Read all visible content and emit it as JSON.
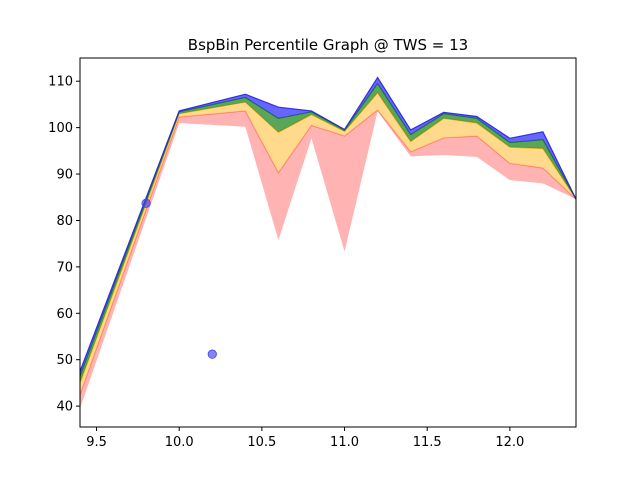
{
  "chart_data": {
    "type": "area",
    "title": "BspBin Percentile Graph @ TWS = 13",
    "xlabel": "",
    "ylabel": "",
    "xlim": [
      9.4,
      12.4
    ],
    "ylim": [
      35.5,
      115
    ],
    "xticks": [
      9.5,
      10.0,
      10.5,
      11.0,
      11.5,
      12.0
    ],
    "xtick_labels": [
      "9.5",
      "10.0",
      "10.5",
      "11.0",
      "11.5",
      "12.0"
    ],
    "yticks": [
      40,
      50,
      60,
      70,
      80,
      90,
      100,
      110
    ],
    "ytick_labels": [
      "40",
      "50",
      "60",
      "70",
      "80",
      "90",
      "100",
      "110"
    ],
    "grid": false,
    "x": [
      9.4,
      10.0,
      10.4,
      10.6,
      10.8,
      11.0,
      11.2,
      11.4,
      11.6,
      11.8,
      12.0,
      12.2,
      12.4
    ],
    "bands": [
      {
        "color": "#ff9999",
        "edge": "#ff6666",
        "lower": [
          39.5,
          101,
          100.2,
          75.8,
          97.7,
          73.3,
          103.5,
          93.8,
          94.1,
          93.7,
          88.7,
          88.0,
          84.6
        ],
        "upper": [
          42.5,
          102.3,
          103.6,
          90.3,
          100.5,
          98.2,
          103.8,
          94.8,
          97.8,
          98.2,
          92.3,
          91.3,
          84.6
        ]
      },
      {
        "color": "#ffcc66",
        "edge": "#ffaa00",
        "lower": [
          42.5,
          102.3,
          103.6,
          90.3,
          100.5,
          98.2,
          103.8,
          94.8,
          97.8,
          98.2,
          92.3,
          91.3,
          84.6
        ],
        "upper": [
          45.0,
          103.0,
          105.5,
          99.0,
          102.8,
          99.2,
          107.5,
          97.0,
          102.0,
          101.0,
          95.8,
          95.5,
          84.6
        ]
      },
      {
        "color": "#228822",
        "edge": "#117711",
        "lower": [
          45.0,
          103.0,
          105.5,
          99.0,
          102.8,
          99.2,
          107.5,
          97.0,
          102.0,
          101.0,
          95.8,
          95.5,
          84.6
        ],
        "upper": [
          46.5,
          103.4,
          106.5,
          102.0,
          103.4,
          99.5,
          109.5,
          98.5,
          103.0,
          102.0,
          96.8,
          97.4,
          84.6
        ]
      },
      {
        "color": "#3333ff",
        "edge": "#2222dd",
        "lower": [
          46.5,
          103.4,
          106.5,
          102.0,
          103.4,
          99.5,
          109.5,
          98.5,
          103.0,
          102.0,
          96.8,
          97.4,
          84.6
        ],
        "upper": [
          47.5,
          103.6,
          107.2,
          104.4,
          103.6,
          99.6,
          110.8,
          99.5,
          103.3,
          102.4,
          97.7,
          99.1,
          84.6
        ]
      }
    ],
    "scatter": {
      "color": "#4444ee",
      "points": [
        {
          "x": 9.8,
          "y": 83.7
        },
        {
          "x": 10.2,
          "y": 51.2
        }
      ]
    }
  }
}
